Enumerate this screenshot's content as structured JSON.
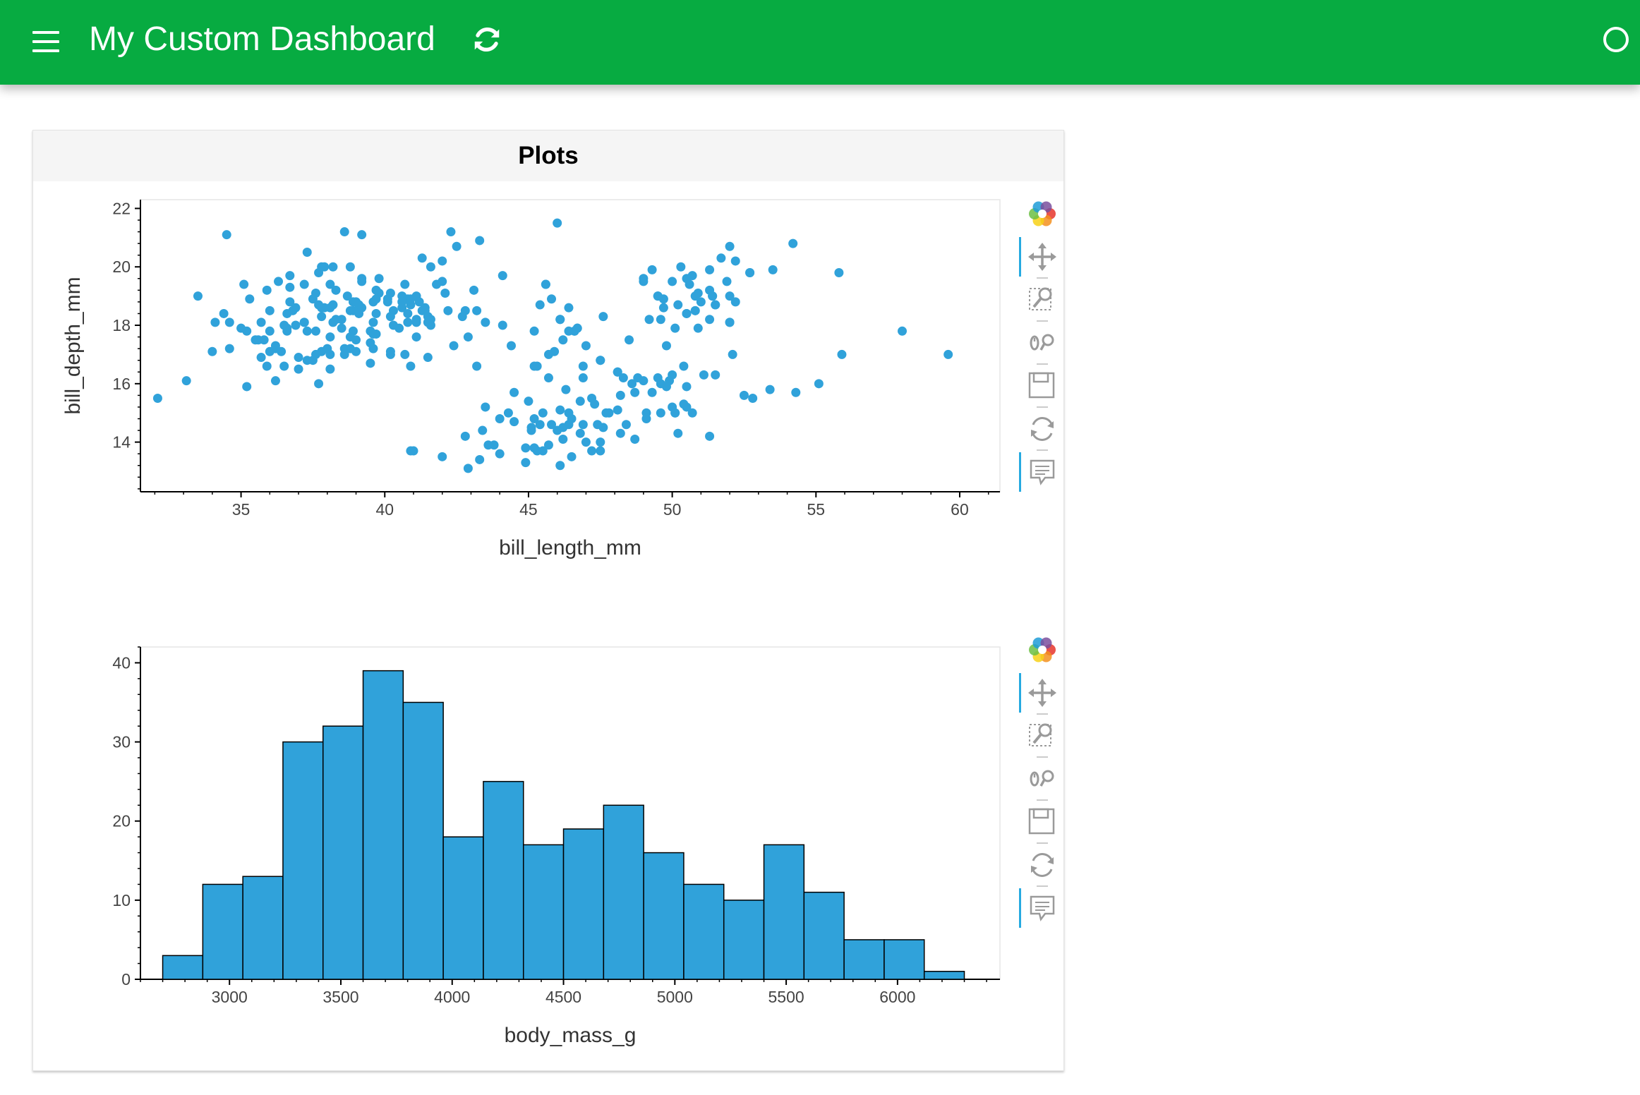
{
  "header": {
    "title": "My Custom Dashboard",
    "menu_icon": "hamburger-menu-icon",
    "refresh_icon": "refresh-icon",
    "status_icon": "busy-indicator-circle-icon",
    "background_color": "#07ab41"
  },
  "card": {
    "title": "Plots"
  },
  "toolbar": {
    "tools": [
      "bokeh-logo-icon",
      "pan-icon",
      "box-zoom-icon",
      "wheel-zoom-icon",
      "save-icon",
      "reset-icon",
      "hover-icon"
    ],
    "active_color": "#26aae1"
  },
  "chart_data": [
    {
      "type": "scatter",
      "xlabel": "bill_length_mm",
      "ylabel": "bill_depth_mm",
      "xlim": [
        31.5,
        61.4
      ],
      "ylim": [
        12.3,
        22.3
      ],
      "xticks": [
        35,
        40,
        45,
        50,
        55,
        60
      ],
      "yticks": [
        14,
        16,
        18,
        20,
        22
      ],
      "color": "#30a2da",
      "grid": false,
      "points": [
        [
          32.1,
          15.5
        ],
        [
          33.1,
          16.1
        ],
        [
          33.5,
          19.0
        ],
        [
          34.0,
          17.1
        ],
        [
          34.1,
          18.1
        ],
        [
          34.4,
          18.4
        ],
        [
          34.5,
          21.1
        ],
        [
          34.6,
          18.1
        ],
        [
          34.6,
          17.2
        ],
        [
          35.0,
          17.9
        ],
        [
          35.1,
          19.4
        ],
        [
          35.2,
          15.9
        ],
        [
          35.3,
          18.9
        ],
        [
          35.5,
          17.5
        ],
        [
          35.6,
          17.5
        ],
        [
          35.7,
          16.9
        ],
        [
          35.9,
          19.2
        ],
        [
          35.9,
          16.6
        ],
        [
          36.0,
          17.1
        ],
        [
          36.0,
          18.5
        ],
        [
          36.0,
          17.8
        ],
        [
          36.2,
          16.1
        ],
        [
          36.2,
          17.2
        ],
        [
          36.3,
          19.5
        ],
        [
          36.4,
          17.1
        ],
        [
          36.5,
          18.0
        ],
        [
          36.6,
          17.8
        ],
        [
          36.6,
          18.4
        ],
        [
          36.7,
          18.8
        ],
        [
          36.7,
          19.3
        ],
        [
          36.8,
          18.5
        ],
        [
          36.9,
          18.6
        ],
        [
          37.0,
          16.9
        ],
        [
          37.0,
          16.5
        ],
        [
          37.2,
          18.1
        ],
        [
          37.2,
          19.4
        ],
        [
          37.3,
          20.5
        ],
        [
          37.3,
          17.8
        ],
        [
          37.3,
          16.8
        ],
        [
          37.5,
          18.9
        ],
        [
          37.6,
          19.1
        ],
        [
          37.6,
          17.0
        ],
        [
          37.7,
          18.7
        ],
        [
          37.7,
          19.8
        ],
        [
          37.8,
          18.3
        ],
        [
          37.8,
          17.1
        ],
        [
          37.9,
          18.6
        ],
        [
          38.0,
          17.2
        ],
        [
          38.1,
          18.6
        ],
        [
          38.1,
          17.0
        ],
        [
          38.1,
          16.5
        ],
        [
          38.2,
          18.1
        ],
        [
          38.2,
          20.0
        ],
        [
          38.3,
          19.2
        ],
        [
          38.5,
          17.9
        ],
        [
          38.6,
          21.2
        ],
        [
          38.6,
          17.2
        ],
        [
          38.6,
          17.0
        ],
        [
          38.7,
          19.0
        ],
        [
          38.8,
          17.2
        ],
        [
          38.8,
          20.0
        ],
        [
          38.9,
          17.8
        ],
        [
          38.9,
          18.8
        ],
        [
          39.0,
          17.1
        ],
        [
          39.0,
          17.5
        ],
        [
          39.1,
          18.7
        ],
        [
          39.2,
          19.6
        ],
        [
          39.2,
          21.1
        ],
        [
          39.5,
          17.4
        ],
        [
          39.5,
          16.7
        ],
        [
          39.6,
          17.7
        ],
        [
          39.6,
          18.8
        ],
        [
          39.7,
          17.7
        ],
        [
          39.7,
          18.4
        ],
        [
          39.8,
          19.1
        ],
        [
          40.1,
          18.9
        ],
        [
          40.2,
          17.0
        ],
        [
          40.2,
          17.1
        ],
        [
          40.3,
          18.0
        ],
        [
          40.5,
          17.9
        ],
        [
          40.6,
          18.6
        ],
        [
          40.6,
          19.0
        ],
        [
          40.7,
          17.0
        ],
        [
          40.8,
          18.4
        ],
        [
          40.8,
          18.9
        ],
        [
          40.9,
          16.6
        ],
        [
          40.9,
          18.9
        ],
        [
          41.1,
          17.6
        ],
        [
          41.1,
          19.0
        ],
        [
          41.1,
          18.2
        ],
        [
          41.3,
          20.3
        ],
        [
          41.4,
          18.5
        ],
        [
          41.5,
          18.3
        ],
        [
          41.6,
          18.0
        ],
        [
          41.6,
          20.0
        ],
        [
          41.8,
          19.4
        ],
        [
          42.0,
          20.2
        ],
        [
          42.1,
          19.1
        ],
        [
          42.2,
          18.5
        ],
        [
          42.3,
          21.2
        ],
        [
          42.5,
          20.7
        ],
        [
          42.7,
          18.3
        ],
        [
          42.8,
          18.5
        ],
        [
          42.9,
          17.6
        ],
        [
          43.1,
          19.2
        ],
        [
          43.2,
          18.5
        ],
        [
          43.3,
          20.9
        ],
        [
          43.5,
          15.2
        ],
        [
          43.5,
          18.1
        ],
        [
          44.0,
          13.6
        ],
        [
          44.1,
          18.0
        ],
        [
          44.1,
          19.7
        ],
        [
          44.5,
          15.7
        ],
        [
          44.9,
          13.3
        ],
        [
          45.2,
          14.8
        ],
        [
          45.4,
          14.6
        ],
        [
          45.5,
          13.7
        ],
        [
          45.7,
          13.9
        ],
        [
          46.1,
          13.2
        ],
        [
          46.2,
          14.5
        ],
        [
          46.5,
          13.5
        ],
        [
          46.8,
          14.3
        ],
        [
          47.2,
          13.7
        ],
        [
          47.5,
          14.0
        ],
        [
          48.2,
          14.3
        ],
        [
          48.7,
          14.1
        ],
        [
          49.1,
          14.8
        ],
        [
          49.6,
          15.0
        ],
        [
          50.1,
          15.0
        ],
        [
          50.5,
          15.9
        ],
        [
          50.7,
          15.0
        ],
        [
          51.1,
          16.3
        ],
        [
          46.2,
          17.5
        ],
        [
          46.4,
          18.6
        ],
        [
          46.7,
          17.9
        ],
        [
          46.9,
          16.6
        ],
        [
          47.0,
          17.3
        ],
        [
          47.5,
          16.8
        ],
        [
          47.6,
          18.3
        ],
        [
          48.1,
          16.4
        ],
        [
          49.2,
          18.2
        ],
        [
          49.5,
          19.0
        ],
        [
          49.7,
          18.6
        ],
        [
          50.0,
          19.5
        ],
        [
          50.3,
          20.0
        ],
        [
          50.5,
          18.4
        ],
        [
          50.8,
          18.5
        ],
        [
          51.3,
          19.2
        ],
        [
          51.7,
          20.3
        ],
        [
          52.0,
          18.1
        ],
        [
          52.7,
          19.8
        ],
        [
          53.5,
          19.9
        ],
        [
          55.8,
          19.8
        ],
        [
          45.4,
          18.7
        ],
        [
          45.6,
          19.4
        ],
        [
          46.0,
          21.5
        ],
        [
          46.1,
          18.2
        ],
        [
          45.9,
          17.1
        ],
        [
          42.4,
          17.3
        ],
        [
          43.2,
          16.6
        ],
        [
          41.5,
          16.9
        ],
        [
          45.2,
          16.6
        ],
        [
          45.8,
          18.9
        ],
        [
          46.6,
          17.8
        ],
        [
          49.0,
          19.5
        ],
        [
          50.9,
          17.9
        ],
        [
          50.8,
          19.0
        ],
        [
          52.2,
          18.8
        ],
        [
          58.0,
          17.8
        ],
        [
          59.6,
          17.0
        ],
        [
          55.9,
          17.0
        ],
        [
          54.2,
          20.8
        ],
        [
          52.0,
          20.7
        ],
        [
          51.5,
          18.7
        ],
        [
          51.4,
          19.0
        ],
        [
          50.6,
          19.4
        ],
        [
          49.8,
          17.3
        ],
        [
          48.5,
          17.5
        ],
        [
          47.5,
          13.7
        ],
        [
          46.4,
          15.0
        ],
        [
          45.1,
          14.5
        ],
        [
          44.5,
          14.7
        ],
        [
          43.8,
          13.9
        ],
        [
          42.9,
          13.1
        ],
        [
          42.0,
          13.5
        ],
        [
          41.0,
          13.7
        ],
        [
          40.9,
          13.7
        ],
        [
          49.3,
          15.7
        ],
        [
          50.4,
          15.3
        ],
        [
          51.3,
          14.2
        ],
        [
          52.1,
          17.0
        ],
        [
          52.5,
          15.6
        ],
        [
          53.4,
          15.8
        ],
        [
          54.3,
          15.7
        ],
        [
          55.1,
          16.0
        ],
        [
          48.4,
          14.6
        ],
        [
          47.8,
          15.0
        ],
        [
          48.6,
          16.0
        ],
        [
          49.9,
          16.1
        ],
        [
          50.0,
          15.2
        ],
        [
          46.5,
          14.8
        ],
        [
          45.3,
          13.7
        ],
        [
          44.9,
          13.8
        ],
        [
          46.3,
          15.8
        ],
        [
          47.3,
          15.3
        ],
        [
          49.1,
          15.0
        ],
        [
          48.8,
          16.2
        ],
        [
          47.7,
          15.0
        ],
        [
          50.2,
          14.3
        ],
        [
          45.5,
          15.0
        ],
        [
          46.9,
          14.6
        ],
        [
          48.1,
          15.1
        ],
        [
          45.1,
          14.4
        ],
        [
          46.0,
          14.4
        ],
        [
          49.6,
          16.0
        ],
        [
          43.3,
          13.4
        ],
        [
          45.8,
          14.6
        ],
        [
          47.4,
          14.6
        ],
        [
          50.5,
          15.2
        ],
        [
          46.4,
          14.6
        ],
        [
          49.5,
          16.2
        ],
        [
          45.2,
          13.8
        ],
        [
          48.2,
          15.6
        ],
        [
          50.1,
          15.0
        ],
        [
          44.4,
          17.3
        ],
        [
          45.7,
          17.0
        ],
        [
          47.0,
          14.0
        ],
        [
          48.3,
          16.2
        ],
        [
          43.6,
          13.9
        ],
        [
          46.2,
          14.1
        ],
        [
          45.7,
          16.2
        ],
        [
          44.3,
          15.0
        ],
        [
          51.5,
          16.3
        ],
        [
          52.8,
          15.5
        ],
        [
          45.0,
          15.4
        ],
        [
          49.8,
          15.9
        ],
        [
          43.4,
          14.4
        ],
        [
          47.2,
          15.5
        ],
        [
          46.1,
          15.1
        ],
        [
          48.7,
          15.7
        ],
        [
          46.8,
          15.4
        ],
        [
          50.0,
          16.3
        ],
        [
          45.3,
          16.6
        ],
        [
          42.8,
          14.2
        ],
        [
          44.0,
          14.8
        ],
        [
          46.9,
          16.2
        ],
        [
          50.4,
          16.6
        ],
        [
          47.6,
          14.5
        ],
        [
          49.0,
          16.1
        ],
        [
          50.7,
          19.7
        ],
        [
          51.9,
          19.5
        ],
        [
          52.2,
          20.2
        ],
        [
          50.2,
          18.7
        ],
        [
          49.7,
          18.9
        ],
        [
          51.0,
          18.8
        ],
        [
          50.5,
          19.6
        ],
        [
          46.6,
          17.8
        ],
        [
          51.3,
          19.9
        ],
        [
          47.5,
          16.8
        ],
        [
          52.0,
          19.0
        ],
        [
          50.9,
          19.1
        ],
        [
          50.8,
          18.5
        ],
        [
          49.0,
          19.6
        ],
        [
          48.1,
          16.4
        ],
        [
          45.6,
          19.4
        ],
        [
          49.3,
          19.9
        ],
        [
          46.1,
          18.2
        ],
        [
          51.3,
          18.2
        ],
        [
          52.7,
          19.8
        ],
        [
          46.4,
          17.8
        ],
        [
          45.2,
          17.8
        ],
        [
          49.6,
          18.2
        ],
        [
          50.1,
          17.9
        ],
        [
          46.7,
          17.9
        ],
        [
          51.4,
          19.0
        ],
        [
          50.5,
          18.4
        ],
        [
          51.5,
          18.7
        ],
        [
          49.5,
          19.0
        ],
        [
          52.0,
          18.1
        ],
        [
          38.3,
          18.2
        ],
        [
          37.8,
          18.6
        ],
        [
          39.8,
          19.6
        ],
        [
          40.1,
          18.8
        ],
        [
          39.6,
          17.2
        ],
        [
          38.9,
          18.5
        ],
        [
          37.2,
          18.1
        ],
        [
          35.8,
          17.5
        ],
        [
          36.2,
          17.3
        ],
        [
          39.2,
          18.6
        ],
        [
          41.2,
          18.8
        ],
        [
          38.5,
          18.2
        ],
        [
          40.6,
          18.8
        ],
        [
          39.0,
          18.8
        ],
        [
          37.7,
          16.0
        ],
        [
          40.2,
          19.1
        ],
        [
          36.6,
          17.9
        ],
        [
          37.5,
          16.8
        ],
        [
          39.7,
          18.9
        ],
        [
          42.0,
          19.5
        ],
        [
          39.6,
          18.1
        ],
        [
          41.1,
          18.1
        ],
        [
          40.3,
          18.5
        ],
        [
          38.1,
          19.4
        ],
        [
          36.5,
          16.6
        ],
        [
          37.6,
          17.8
        ],
        [
          39.2,
          19.5
        ],
        [
          38.8,
          18.5
        ],
        [
          35.7,
          18.1
        ],
        [
          41.3,
          18.5
        ],
        [
          37.8,
          20.0
        ],
        [
          41.5,
          18.1
        ],
        [
          40.7,
          19.4
        ],
        [
          39.1,
          18.4
        ],
        [
          37.9,
          20.0
        ],
        [
          41.4,
          18.6
        ],
        [
          39.7,
          19.2
        ],
        [
          38.2,
          18.7
        ],
        [
          40.2,
          18.3
        ],
        [
          35.2,
          17.8
        ],
        [
          40.8,
          18.1
        ],
        [
          38.1,
          17.6
        ],
        [
          41.6,
          18.2
        ],
        [
          36.9,
          18.0
        ],
        [
          39.5,
          17.8
        ],
        [
          40.9,
          18.7
        ],
        [
          36.7,
          19.7
        ],
        [
          38.8,
          17.6
        ]
      ]
    },
    {
      "type": "bar",
      "xlabel": "body_mass_g",
      "ylabel": "",
      "xlim": [
        2600,
        6460
      ],
      "ylim": [
        0,
        42
      ],
      "xticks": [
        3000,
        3500,
        4000,
        4500,
        5000,
        5500,
        6000
      ],
      "yticks": [
        0,
        10,
        20,
        30,
        40
      ],
      "color": "#30a2da",
      "edge_color": "#000000",
      "bin_edges": [
        2700,
        2880,
        3060,
        3240,
        3420,
        3600,
        3780,
        3960,
        4140,
        4320,
        4500,
        4680,
        4860,
        5040,
        5220,
        5400,
        5580,
        5760,
        5940,
        6120,
        6300
      ],
      "values": [
        3,
        12,
        13,
        30,
        32,
        39,
        35,
        18,
        25,
        17,
        19,
        22,
        16,
        12,
        10,
        17,
        11,
        5,
        5,
        1
      ]
    }
  ]
}
